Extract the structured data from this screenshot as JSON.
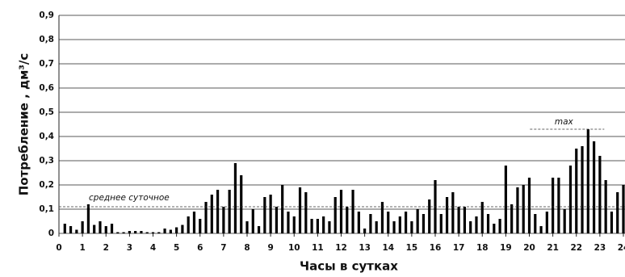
{
  "chart_data": {
    "type": "bar",
    "xlabel": "Часы в сутках",
    "ylabel": "Потребление , дм³/с",
    "x": [
      0.25,
      0.5,
      0.75,
      1,
      1.25,
      1.5,
      1.75,
      2,
      2.25,
      2.5,
      2.75,
      3,
      3.25,
      3.5,
      3.75,
      4,
      4.25,
      4.5,
      4.75,
      5,
      5.25,
      5.5,
      5.75,
      6,
      6.25,
      6.5,
      6.75,
      7,
      7.25,
      7.5,
      7.75,
      8,
      8.25,
      8.5,
      8.75,
      9,
      9.25,
      9.5,
      9.75,
      10,
      10.25,
      10.5,
      10.75,
      11,
      11.25,
      11.5,
      11.75,
      12,
      12.25,
      12.5,
      12.75,
      13,
      13.25,
      13.5,
      13.75,
      14,
      14.25,
      14.5,
      14.75,
      15,
      15.25,
      15.5,
      15.75,
      16,
      16.25,
      16.5,
      16.75,
      17,
      17.25,
      17.5,
      17.75,
      18,
      18.25,
      18.5,
      18.75,
      19,
      19.25,
      19.5,
      19.75,
      20,
      20.25,
      20.5,
      20.75,
      21,
      21.25,
      21.5,
      21.75,
      22,
      22.25,
      22.5,
      22.75,
      23,
      23.25,
      23.5,
      23.75,
      24
    ],
    "values": [
      0.04,
      0.03,
      0.015,
      0.05,
      0.12,
      0.035,
      0.05,
      0.03,
      0.04,
      0.005,
      0.005,
      0.01,
      0.01,
      0.01,
      0.005,
      0.005,
      0.005,
      0.02,
      0.015,
      0.025,
      0.035,
      0.07,
      0.09,
      0.06,
      0.13,
      0.16,
      0.18,
      0.11,
      0.18,
      0.29,
      0.24,
      0.05,
      0.1,
      0.03,
      0.15,
      0.16,
      0.11,
      0.2,
      0.09,
      0.07,
      0.19,
      0.17,
      0.06,
      0.06,
      0.07,
      0.05,
      0.15,
      0.18,
      0.11,
      0.18,
      0.09,
      0.02,
      0.08,
      0.05,
      0.13,
      0.09,
      0.05,
      0.07,
      0.09,
      0.05,
      0.1,
      0.08,
      0.14,
      0.22,
      0.08,
      0.15,
      0.17,
      0.11,
      0.11,
      0.05,
      0.07,
      0.13,
      0.08,
      0.04,
      0.06,
      0.28,
      0.12,
      0.19,
      0.2,
      0.23,
      0.08,
      0.03,
      0.09,
      0.23,
      0.23,
      0.1,
      0.28,
      0.35,
      0.36,
      0.43,
      0.38,
      0.32,
      0.22,
      0.09,
      0.17,
      0.2
    ],
    "color": "#000000",
    "xlim": [
      0,
      24
    ],
    "xticks": [
      0,
      1,
      2,
      3,
      4,
      5,
      6,
      7,
      8,
      9,
      10,
      11,
      12,
      13,
      14,
      15,
      16,
      17,
      18,
      19,
      20,
      21,
      22,
      23,
      24
    ],
    "ylim": [
      0,
      0.9
    ],
    "yticks": [
      0,
      {
        "value": 0.1,
        "label": "0,1"
      },
      {
        "value": 0.2,
        "label": "0,2"
      },
      {
        "value": 0.3,
        "label": "0,3"
      },
      {
        "value": 0.4,
        "label": "0,4"
      },
      {
        "value": 0.5,
        "label": "0,5"
      },
      {
        "value": 0.6,
        "label": "0,6"
      },
      {
        "value": 0.7,
        "label": "0,7"
      },
      {
        "value": 0.8,
        "label": "0,8"
      },
      {
        "value": 0.9,
        "label": "0,9"
      }
    ],
    "grid": true,
    "mean_line": {
      "label": "среднее суточное",
      "value": 0.11
    },
    "max_line": {
      "label": "max",
      "value": 0.43
    }
  }
}
